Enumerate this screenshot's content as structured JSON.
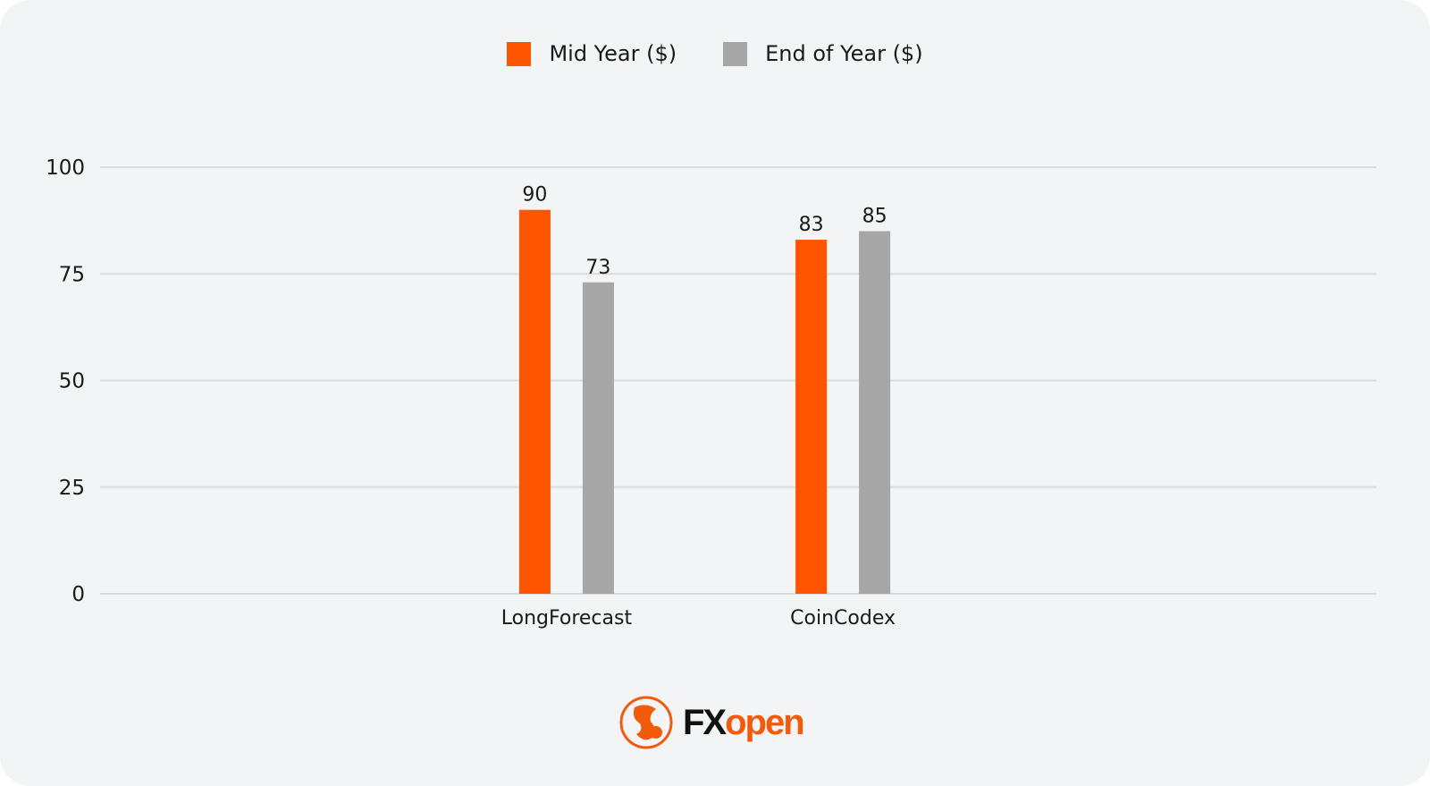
{
  "chart_data": {
    "type": "bar",
    "title": "",
    "xlabel": "",
    "ylabel": "",
    "categories": [
      "LongForecast",
      "CoinCodex"
    ],
    "series": [
      {
        "name": "Mid Year ($)",
        "values": [
          90,
          83
        ],
        "color": "#ff5500"
      },
      {
        "name": "End of Year ($)",
        "values": [
          73,
          85
        ],
        "color": "#a6a6a6"
      }
    ],
    "ylim": [
      0,
      100
    ],
    "yticks": [
      0,
      25,
      50,
      75,
      100
    ],
    "grid": true,
    "legend_position": "top-center",
    "data_labels": true
  },
  "logo": {
    "brand": "FXopen",
    "part1": "FX",
    "part2": "open"
  }
}
